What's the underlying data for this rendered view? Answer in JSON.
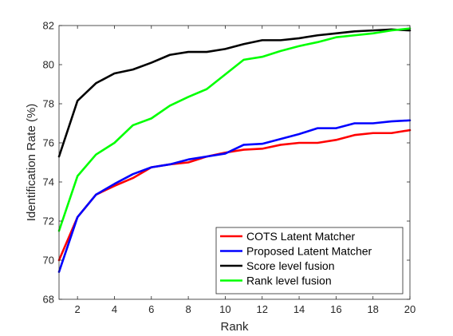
{
  "chart_data": {
    "type": "line",
    "title": "",
    "xlabel": "Rank",
    "ylabel": "Identification Rate (%)",
    "xlim": [
      1,
      20
    ],
    "ylim": [
      68,
      82
    ],
    "xticks": [
      2,
      4,
      6,
      8,
      10,
      12,
      14,
      16,
      18,
      20
    ],
    "yticks": [
      68,
      70,
      72,
      74,
      76,
      78,
      80,
      82
    ],
    "grid": false,
    "legend_position": "bottom-right",
    "x": [
      1,
      2,
      3,
      4,
      5,
      6,
      7,
      8,
      9,
      10,
      11,
      12,
      13,
      14,
      15,
      16,
      17,
      18,
      19,
      20
    ],
    "series": [
      {
        "name": "COTS Latent Matcher",
        "color": "#ff0000",
        "values": [
          70.0,
          72.2,
          73.35,
          73.8,
          74.2,
          74.75,
          74.9,
          75.0,
          75.3,
          75.5,
          75.65,
          75.7,
          75.9,
          76.0,
          76.0,
          76.15,
          76.4,
          76.5,
          76.5,
          76.65
        ]
      },
      {
        "name": "Proposed Latent Matcher",
        "color": "#0000ff",
        "values": [
          69.4,
          72.2,
          73.35,
          73.9,
          74.4,
          74.75,
          74.9,
          75.15,
          75.3,
          75.45,
          75.9,
          75.95,
          76.2,
          76.45,
          76.75,
          76.75,
          77.0,
          77.0,
          77.1,
          77.15
        ]
      },
      {
        "name": "Score level fusion",
        "color": "#000000",
        "values": [
          75.3,
          78.15,
          79.05,
          79.55,
          79.75,
          80.1,
          80.5,
          80.65,
          80.65,
          80.8,
          81.05,
          81.25,
          81.25,
          81.35,
          81.5,
          81.6,
          81.7,
          81.75,
          81.8,
          81.75
        ]
      },
      {
        "name": "Rank level fusion",
        "color": "#00ff00",
        "values": [
          71.5,
          74.3,
          75.4,
          76.0,
          76.9,
          77.25,
          77.9,
          78.35,
          78.75,
          79.5,
          80.25,
          80.4,
          80.7,
          80.95,
          81.15,
          81.4,
          81.5,
          81.6,
          81.75,
          81.85
        ]
      }
    ]
  }
}
